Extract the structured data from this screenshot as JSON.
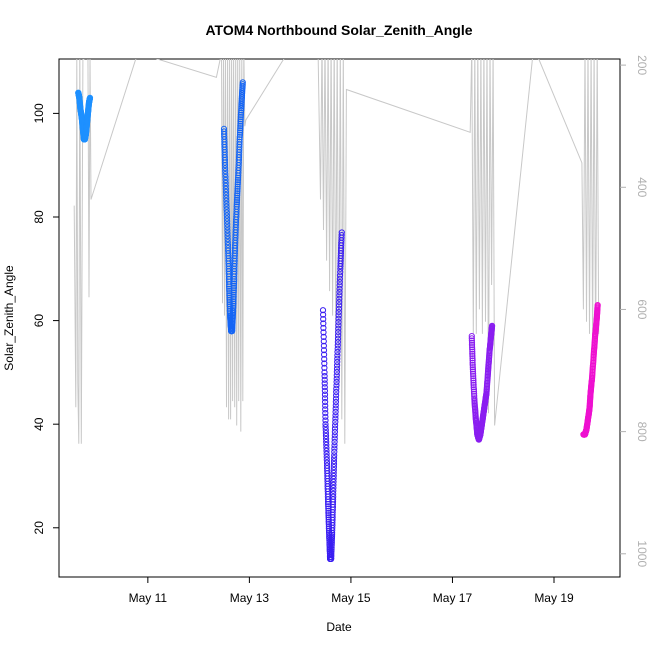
{
  "chart_data": {
    "type": "scatter",
    "title": "ATOM4 Northbound Solar_Zenith_Angle",
    "xlabel": "Date",
    "ylabel": "Solar_Zenith_Angle",
    "x_tick_labels": [
      "May 11",
      "May 13",
      "May 15",
      "May 17",
      "May 19"
    ],
    "x_tick_values": [
      11,
      13,
      15,
      17,
      19
    ],
    "xlim": [
      9.25,
      20.3
    ],
    "ylim": [
      10.5,
      110.5
    ],
    "y_tick_values": [
      20,
      40,
      60,
      80,
      100
    ],
    "y_tick_labels": [
      "20",
      "40",
      "60",
      "80",
      "100"
    ],
    "y2lim": [
      1038,
      190
    ],
    "y2_tick_values": [
      200,
      400,
      600,
      800,
      1000
    ],
    "y2_tick_labels": [
      "200",
      "400",
      "600",
      "800",
      "1000"
    ],
    "grid": false,
    "colors": {
      "altitude_line": "#c8c8c8",
      "series": [
        "#1e90ff",
        "#1565f5",
        "#3a1ef2",
        "#8a1ef0",
        "#ee10d0"
      ]
    },
    "series": [
      {
        "x": [
          9.63,
          9.65,
          9.67,
          9.7,
          9.72,
          9.74,
          9.76,
          9.78,
          9.8,
          9.82,
          9.84,
          9.86
        ],
        "y": [
          104,
          103,
          101,
          99,
          97,
          95,
          95,
          96,
          98,
          100,
          102,
          103
        ]
      },
      {
        "x": [
          12.5,
          12.52,
          12.55,
          12.58,
          12.6,
          12.62,
          12.64,
          12.66,
          12.68,
          12.7,
          12.72,
          12.75,
          12.78,
          12.81,
          12.84,
          12.87
        ],
        "y": [
          97,
          90,
          82,
          74,
          67,
          61,
          58,
          58,
          62,
          68,
          75,
          82,
          88,
          95,
          101,
          106
        ]
      },
      {
        "x": [
          14.45,
          14.48,
          14.5,
          14.53,
          14.55,
          14.57,
          14.59,
          14.61,
          14.63,
          14.65,
          14.67,
          14.7,
          14.73,
          14.76,
          14.79,
          14.82
        ],
        "y": [
          62,
          50,
          40,
          32,
          25,
          19,
          14,
          14,
          19,
          26,
          34,
          43,
          52,
          61,
          70,
          77
        ]
      },
      {
        "x": [
          17.38,
          17.4,
          17.43,
          17.46,
          17.49,
          17.52,
          17.55,
          17.58,
          17.61,
          17.64,
          17.67,
          17.7,
          17.73,
          17.76,
          17.78
        ],
        "y": [
          57,
          51,
          45,
          41,
          38,
          37,
          38,
          40,
          42,
          44,
          46,
          50,
          54,
          57,
          59
        ]
      },
      {
        "x": [
          19.58,
          19.61,
          19.64,
          19.67,
          19.7,
          19.72,
          19.75,
          19.78,
          19.81,
          19.84,
          19.86
        ],
        "y": [
          38,
          38,
          39,
          41,
          43,
          46,
          49,
          53,
          57,
          60,
          63
        ]
      }
    ],
    "altitude_trace": {
      "x": [
        9.55,
        9.58,
        9.6,
        9.62,
        9.64,
        9.66,
        9.69,
        9.72,
        9.74,
        9.76,
        9.78,
        9.8,
        9.82,
        9.84,
        9.86,
        9.88,
        10.8,
        12.35,
        12.45,
        12.47,
        12.49,
        12.51,
        12.53,
        12.55,
        12.57,
        12.59,
        12.61,
        12.63,
        12.65,
        12.67,
        12.69,
        12.71,
        12.73,
        12.75,
        12.77,
        12.79,
        12.81,
        12.83,
        12.85,
        12.87,
        12.89,
        12.91,
        12.93,
        13.9,
        14.35,
        14.4,
        14.43,
        14.46,
        14.49,
        14.52,
        14.55,
        14.58,
        14.61,
        14.64,
        14.67,
        14.7,
        14.73,
        14.76,
        14.79,
        14.82,
        14.85,
        14.88,
        14.91,
        17.35,
        17.38,
        17.41,
        17.44,
        17.47,
        17.5,
        17.53,
        17.56,
        17.59,
        17.62,
        17.65,
        17.68,
        17.71,
        17.74,
        17.77,
        17.8,
        17.83,
        18.6,
        19.55,
        19.58,
        19.61,
        19.64,
        19.67,
        19.7,
        19.73,
        19.76,
        19.79,
        19.82,
        19.85,
        19.88
      ],
      "altitude": [
        430,
        760,
        190,
        720,
        820,
        170,
        820,
        190,
        190,
        170,
        190,
        180,
        170,
        580,
        180,
        420,
        180,
        220,
        180,
        590,
        170,
        610,
        170,
        760,
        170,
        780,
        170,
        780,
        170,
        750,
        170,
        760,
        170,
        790,
        170,
        750,
        170,
        800,
        170,
        750,
        170,
        300,
        290,
        160,
        160,
        420,
        160,
        470,
        160,
        520,
        160,
        570,
        160,
        610,
        160,
        660,
        160,
        730,
        160,
        780,
        170,
        820,
        240,
        310,
        170,
        640,
        170,
        640,
        170,
        600,
        170,
        640,
        170,
        620,
        170,
        770,
        170,
        560,
        170,
        790,
        170,
        360,
        600,
        170,
        620,
        170,
        640,
        170,
        660,
        170,
        680,
        170,
        640
      ]
    }
  }
}
